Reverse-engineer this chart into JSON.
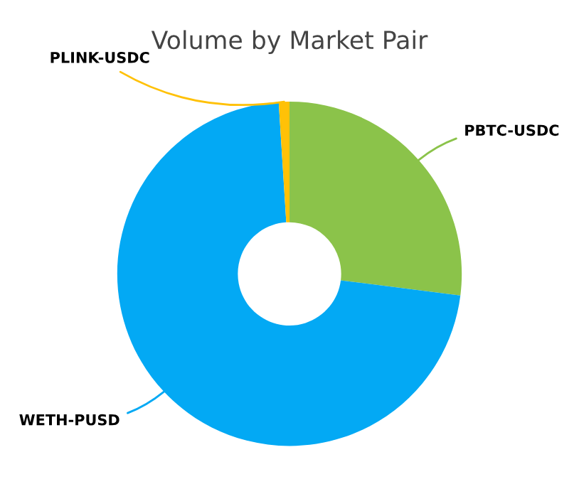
{
  "chart_data": {
    "type": "donut",
    "title": "Volume by Market Pair",
    "categories": [
      "PBTC-USDC",
      "WETH-PUSD",
      "PLINK-USDC"
    ],
    "values": [
      27,
      72,
      1
    ],
    "colors": [
      "#8bc34a",
      "#03a9f4",
      "#ffc107"
    ]
  }
}
